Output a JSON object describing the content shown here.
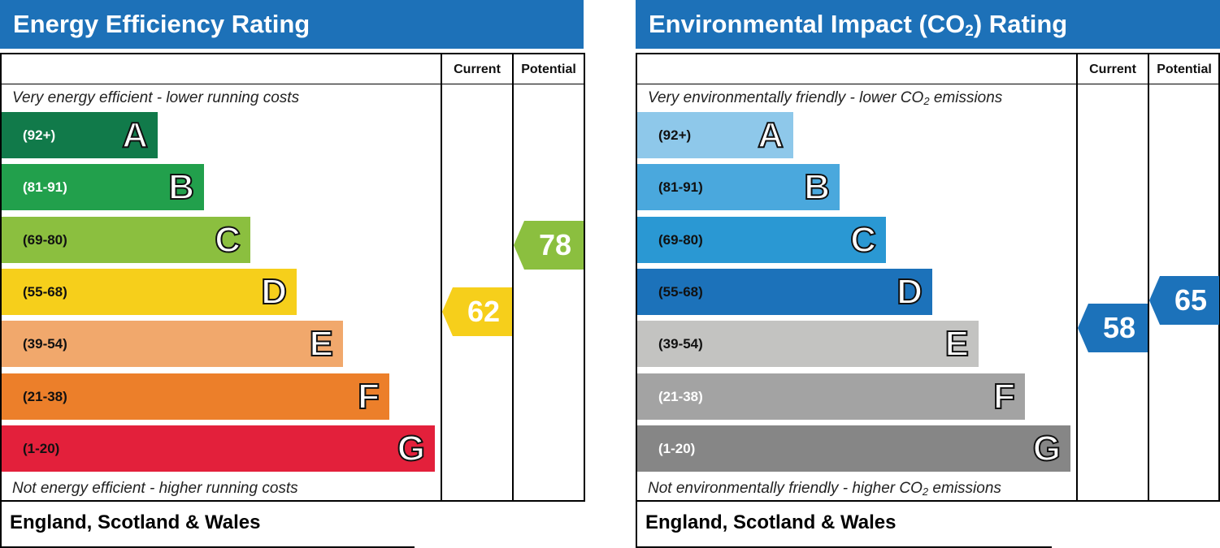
{
  "chart_data": [
    {
      "type": "table",
      "title": "Energy Efficiency Rating",
      "columns": [
        "Current",
        "Potential"
      ],
      "top_caption": "Very energy efficient - lower running costs",
      "bottom_caption": "Not energy efficient - higher running costs",
      "bands": [
        {
          "letter": "A",
          "range": "(92+)",
          "color": "#117a4a",
          "text_color": "#ffffff"
        },
        {
          "letter": "B",
          "range": "(81-91)",
          "color": "#22a04c",
          "text_color": "#ffffff"
        },
        {
          "letter": "C",
          "range": "(69-80)",
          "color": "#8bbf3f",
          "text_color": "#111111"
        },
        {
          "letter": "D",
          "range": "(55-68)",
          "color": "#f6cf1b",
          "text_color": "#111111"
        },
        {
          "letter": "E",
          "range": "(39-54)",
          "color": "#f1a86c",
          "text_color": "#111111"
        },
        {
          "letter": "F",
          "range": "(21-38)",
          "color": "#ec7f2a",
          "text_color": "#111111"
        },
        {
          "letter": "G",
          "range": "(1-20)",
          "color": "#e3203b",
          "text_color": "#111111"
        }
      ],
      "current": {
        "value": 62,
        "band": "D",
        "color": "#f6cf1b"
      },
      "potential": {
        "value": 78,
        "band": "C",
        "color": "#8bbf3f"
      },
      "footer": "England, Scotland & Wales"
    },
    {
      "type": "table",
      "title_main": "Environmental Impact (CO",
      "title_sub": "2",
      "title_end": ") Rating",
      "columns": [
        "Current",
        "Potential"
      ],
      "top_caption_main": "Very environmentally friendly - lower CO",
      "top_caption_sub": "2",
      "top_caption_end": " emissions",
      "bottom_caption_main": "Not environmentally friendly - higher CO",
      "bottom_caption_sub": "2",
      "bottom_caption_end": " emissions",
      "bands": [
        {
          "letter": "A",
          "range": "(92+)",
          "color": "#8ec8ea",
          "text_color": "#111111"
        },
        {
          "letter": "B",
          "range": "(81-91)",
          "color": "#4aa8dd",
          "text_color": "#111111"
        },
        {
          "letter": "C",
          "range": "(69-80)",
          "color": "#2a98d3",
          "text_color": "#111111"
        },
        {
          "letter": "D",
          "range": "(55-68)",
          "color": "#1c72ba",
          "text_color": "#111111"
        },
        {
          "letter": "E",
          "range": "(39-54)",
          "color": "#c3c3c1",
          "text_color": "#111111"
        },
        {
          "letter": "F",
          "range": "(21-38)",
          "color": "#a3a3a3",
          "text_color": "#ffffff"
        },
        {
          "letter": "G",
          "range": "(1-20)",
          "color": "#868686",
          "text_color": "#ffffff"
        }
      ],
      "current": {
        "value": 58,
        "band": "D",
        "color": "#1c72ba"
      },
      "potential": {
        "value": 65,
        "band": "D",
        "color": "#1c72ba"
      },
      "footer": "England, Scotland & Wales"
    }
  ]
}
